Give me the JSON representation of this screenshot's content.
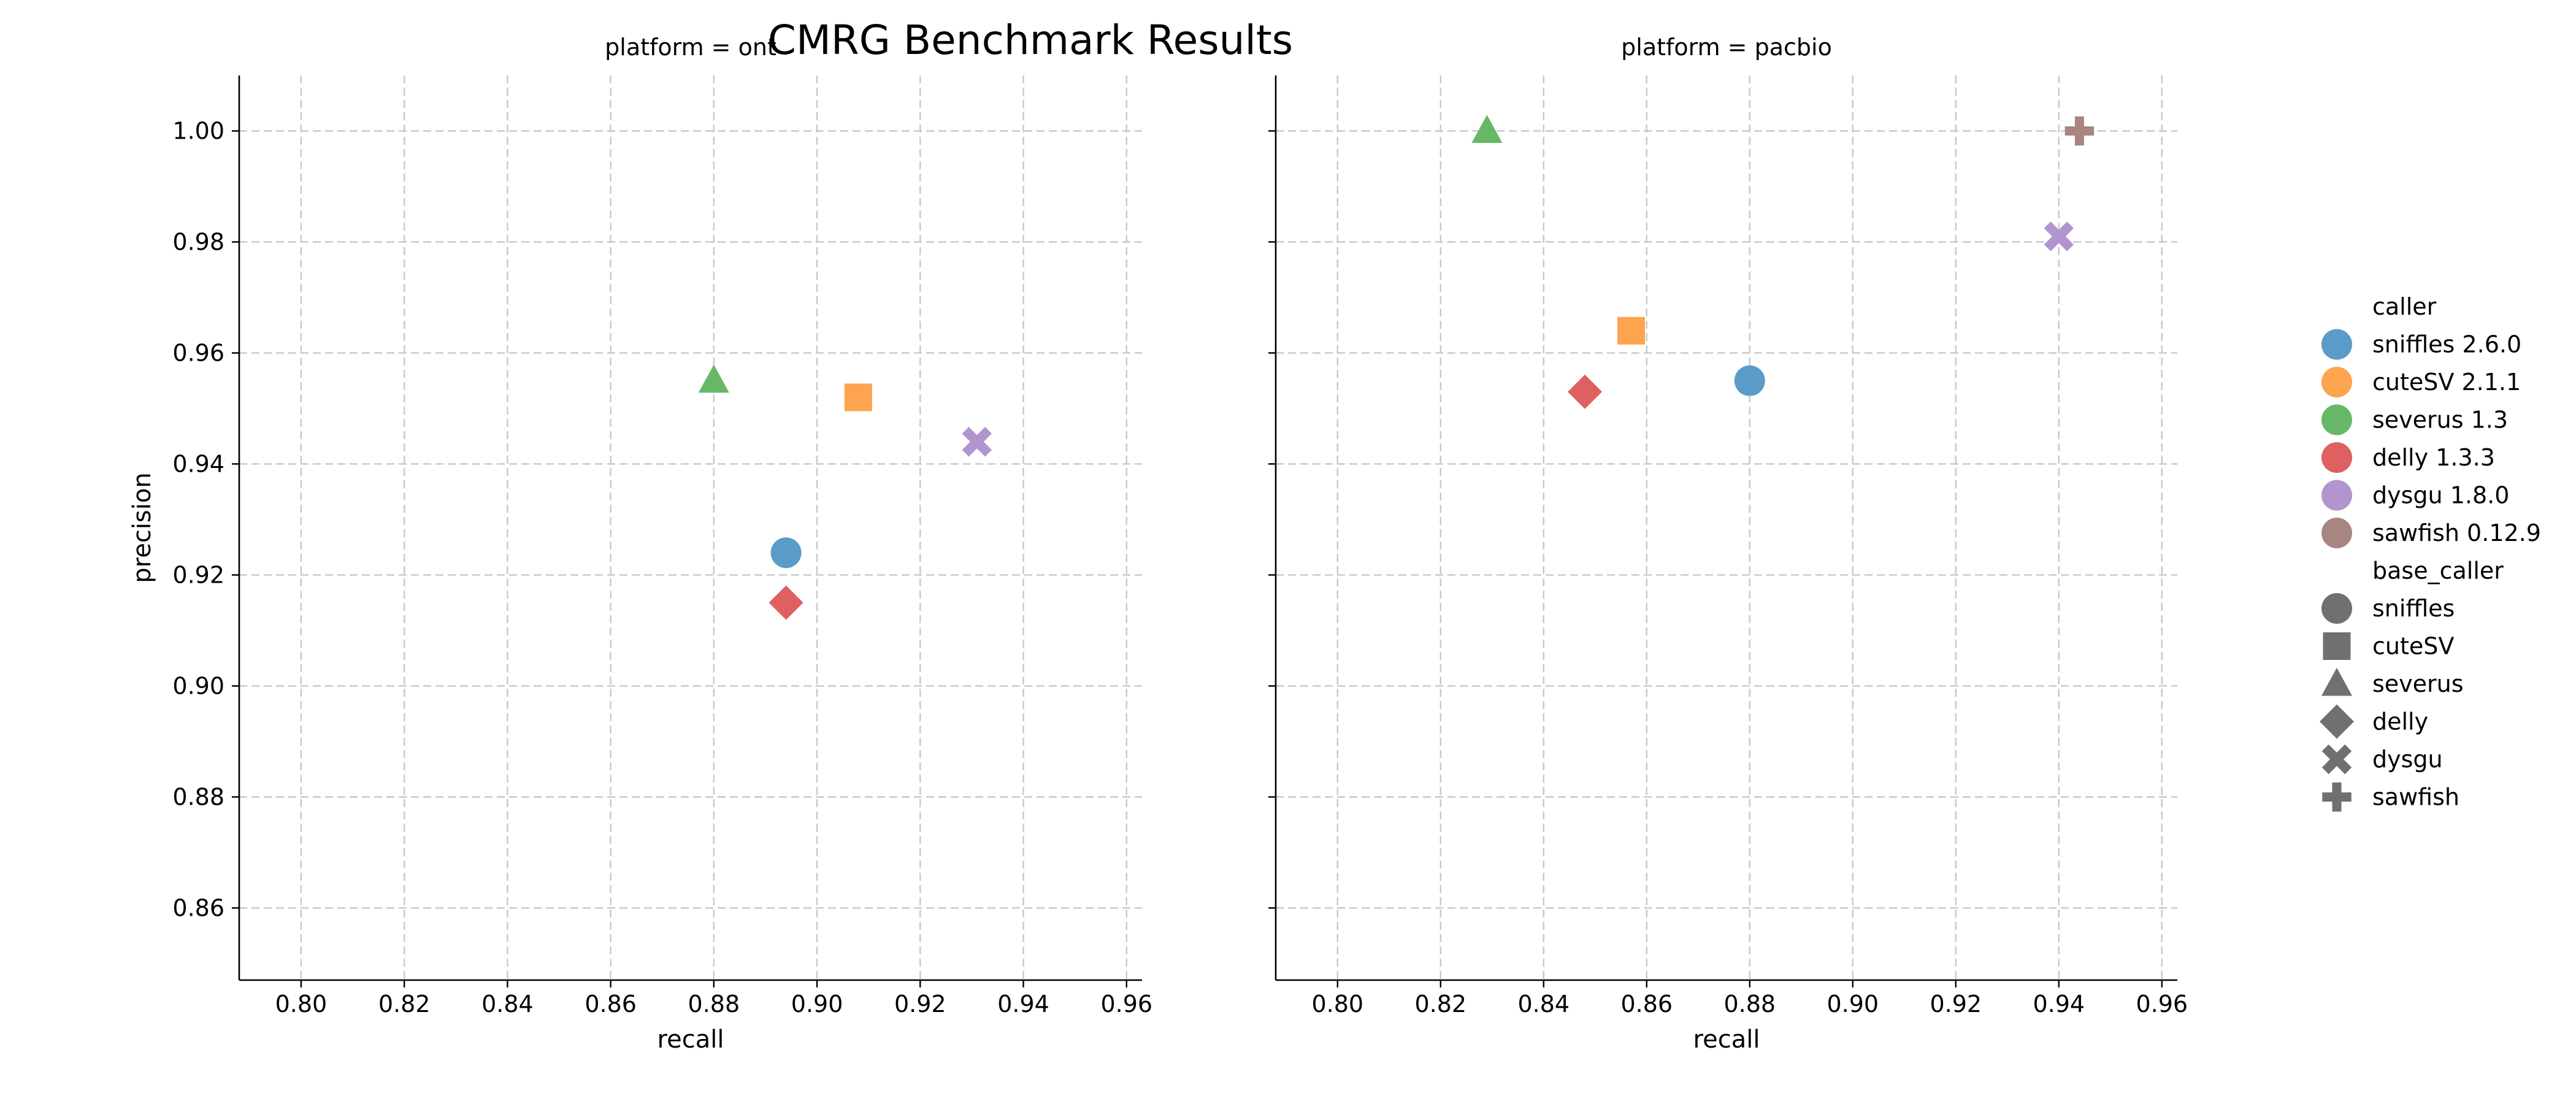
{
  "chart_data": {
    "type": "scatter",
    "title": "CMRG Benchmark Results",
    "xlabel": "recall",
    "ylabel": "precision",
    "xlim": [
      0.788,
      0.963
    ],
    "ylim": [
      0.847,
      1.01
    ],
    "x_ticks": [
      "0.80",
      "0.82",
      "0.84",
      "0.86",
      "0.88",
      "0.90",
      "0.92",
      "0.94",
      "0.96"
    ],
    "y_ticks": [
      "0.86",
      "0.88",
      "0.90",
      "0.92",
      "0.94",
      "0.96",
      "0.98",
      "1.00"
    ],
    "grid": true,
    "sharey": true,
    "legend_position": "right",
    "panels": [
      {
        "title": "platform = ont",
        "points": [
          {
            "caller": "sniffles 2.6.0",
            "base_caller": "sniffles",
            "x": 0.894,
            "y": 0.924
          },
          {
            "caller": "cuteSV 2.1.1",
            "base_caller": "cuteSV",
            "x": 0.908,
            "y": 0.952
          },
          {
            "caller": "severus 1.3",
            "base_caller": "severus",
            "x": 0.88,
            "y": 0.955
          },
          {
            "caller": "delly 1.3.3",
            "base_caller": "delly",
            "x": 0.894,
            "y": 0.915
          },
          {
            "caller": "dysgu 1.8.0",
            "base_caller": "dysgu",
            "x": 0.931,
            "y": 0.944
          }
        ]
      },
      {
        "title": "platform = pacbio",
        "points": [
          {
            "caller": "sniffles 2.6.0",
            "base_caller": "sniffles",
            "x": 0.88,
            "y": 0.955
          },
          {
            "caller": "cuteSV 2.1.1",
            "base_caller": "cuteSV",
            "x": 0.857,
            "y": 0.964
          },
          {
            "caller": "severus 1.3",
            "base_caller": "severus",
            "x": 0.829,
            "y": 1.0
          },
          {
            "caller": "delly 1.3.3",
            "base_caller": "delly",
            "x": 0.848,
            "y": 0.953
          },
          {
            "caller": "dysgu 1.8.0",
            "base_caller": "dysgu",
            "x": 0.94,
            "y": 0.981
          },
          {
            "caller": "sawfish 0.12.9",
            "base_caller": "sawfish",
            "x": 0.944,
            "y": 1.0
          }
        ]
      }
    ],
    "legend": {
      "caller_title": "caller",
      "callers": [
        {
          "name": "sniffles 2.6.0",
          "color": "#5a9bc9"
        },
        {
          "name": "cuteSV 2.1.1",
          "color": "#fda44e"
        },
        {
          "name": "severus 1.3",
          "color": "#66b866"
        },
        {
          "name": "delly 1.3.3",
          "color": "#df6060"
        },
        {
          "name": "dysgu 1.8.0",
          "color": "#b294cf"
        },
        {
          "name": "sawfish 0.12.9",
          "color": "#a88580"
        }
      ],
      "base_caller_title": "base_caller",
      "base_callers": [
        {
          "name": "sniffles",
          "marker": "circle"
        },
        {
          "name": "cuteSV",
          "marker": "square"
        },
        {
          "name": "severus",
          "marker": "triangle"
        },
        {
          "name": "delly",
          "marker": "diamond"
        },
        {
          "name": "dysgu",
          "marker": "x"
        },
        {
          "name": "sawfish",
          "marker": "plus"
        }
      ],
      "marker_color": "#707070"
    }
  }
}
